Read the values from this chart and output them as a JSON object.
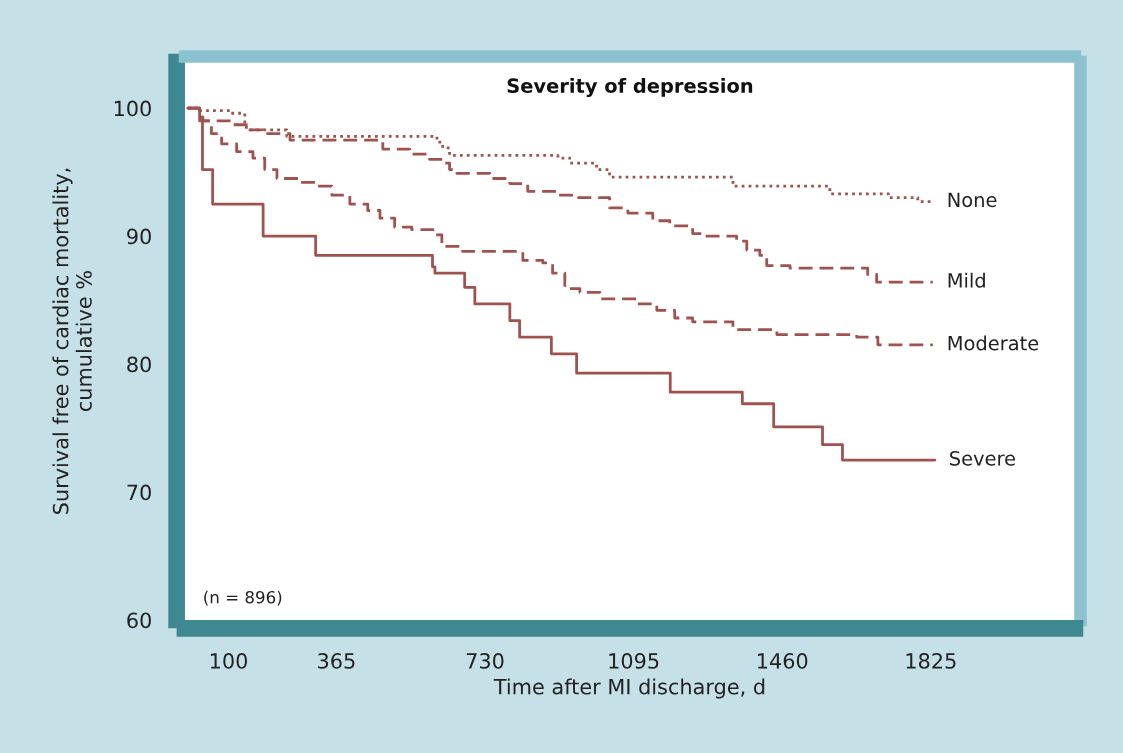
{
  "chart_data": {
    "type": "step",
    "title": "Severity of depression",
    "xlabel": "Time after MI discharge, d",
    "ylabel": "Survival free of cardiac mortality,\ncumulative %",
    "annotations": [
      "(n = 896)"
    ],
    "xlim": [
      -7,
      2179
    ],
    "xticks": [
      100,
      365,
      730,
      1095,
      1460,
      1825
    ],
    "ylim": [
      60,
      103.6
    ],
    "yticks": [
      60,
      70,
      80,
      90,
      100
    ],
    "legend": false,
    "series": [
      {
        "name": "None",
        "color": "#a0524e",
        "line_style": "dotted",
        "x": [
          0,
          29,
          103,
          140,
          152,
          243,
          612,
          619,
          626,
          643,
          909,
          938,
          1004,
          1036,
          1339,
          1577,
          1724,
          1793,
          1830
        ],
        "values": [
          100,
          99.8,
          99.6,
          98.5,
          98.3,
          97.8,
          97.5,
          97.2,
          96.9,
          96.3,
          96.1,
          95.7,
          95.2,
          94.6,
          93.9,
          93.3,
          93.0,
          92.7,
          92.7
        ]
      },
      {
        "name": "Mild",
        "color": "#a0524e",
        "line_style": "dashed",
        "x": [
          0,
          29,
          37,
          111,
          147,
          184,
          251,
          479,
          545,
          594,
          626,
          643,
          661,
          742,
          791,
          835,
          909,
          943,
          1036,
          1081,
          1142,
          1184,
          1240,
          1265,
          1348,
          1373,
          1405,
          1422,
          1479,
          1670,
          1692,
          1830
        ],
        "values": [
          100,
          99.3,
          99.0,
          98.7,
          98.3,
          98.0,
          97.5,
          96.8,
          96.4,
          96.0,
          95.7,
          95.2,
          94.9,
          94.5,
          94.1,
          93.5,
          93.2,
          93.0,
          92.2,
          91.8,
          91.2,
          90.8,
          90.2,
          90.0,
          89.6,
          88.9,
          88.5,
          87.7,
          87.5,
          87.0,
          86.4,
          86.4
        ]
      },
      {
        "name": "Moderate",
        "color": "#a0524e",
        "line_style": "dashed",
        "x": [
          0,
          29,
          58,
          83,
          120,
          160,
          189,
          219,
          275,
          317,
          354,
          398,
          442,
          472,
          508,
          550,
          602,
          624,
          675,
          823,
          872,
          896,
          926,
          963,
          1012,
          1103,
          1152,
          1196,
          1240,
          1339,
          1447,
          1643,
          1695,
          1830
        ],
        "values": [
          100,
          99.0,
          98.0,
          97.2,
          96.6,
          96.1,
          95.2,
          94.5,
          94.2,
          93.9,
          93.2,
          92.5,
          92.0,
          91.4,
          90.7,
          90.5,
          90.1,
          89.2,
          88.8,
          88.1,
          87.9,
          87.1,
          85.9,
          85.6,
          85.1,
          84.7,
          84.2,
          83.6,
          83.3,
          82.7,
          82.3,
          82.1,
          81.5,
          81.5
        ]
      },
      {
        "name": "Severe",
        "color": "#a0524e",
        "line_style": "solid",
        "x": [
          0,
          29,
          36,
          61,
          185,
          314,
          601,
          607,
          680,
          705,
          791,
          815,
          893,
          955,
          1185,
          1362,
          1439,
          1559,
          1608,
          1835
        ],
        "values": [
          100,
          99.3,
          95.2,
          92.5,
          90.0,
          88.5,
          87.6,
          87.1,
          86.0,
          84.7,
          83.4,
          82.1,
          80.8,
          79.3,
          77.8,
          76.9,
          75.1,
          73.7,
          72.5,
          72.5
        ]
      }
    ]
  }
}
